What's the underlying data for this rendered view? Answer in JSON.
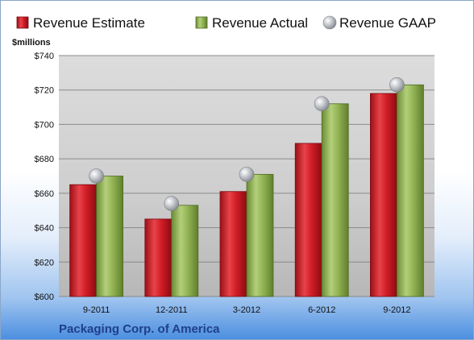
{
  "chart_data": {
    "type": "bar",
    "title": "",
    "ylabel": "$millions",
    "xlabel": "",
    "ylim": [
      600,
      740
    ],
    "yticks": [
      600,
      620,
      640,
      660,
      680,
      700,
      720,
      740
    ],
    "ytick_format": "$",
    "categories": [
      "9-2011",
      "12-2011",
      "3-2012",
      "6-2012",
      "9-2012"
    ],
    "series": [
      {
        "name": "Revenue Estimate",
        "kind": "bar",
        "color": "#d9232d",
        "values": [
          665,
          645,
          661,
          689,
          718
        ]
      },
      {
        "name": "Revenue Actual",
        "kind": "bar",
        "color": "#93b553",
        "values": [
          670,
          653,
          671,
          712,
          723
        ]
      },
      {
        "name": "Revenue GAAP",
        "kind": "point",
        "color": "#b9bcc1",
        "values": [
          670,
          654,
          671,
          712,
          723
        ]
      }
    ],
    "legend_position": "top",
    "grid": true,
    "footer": "Packaging Corp. of America"
  }
}
